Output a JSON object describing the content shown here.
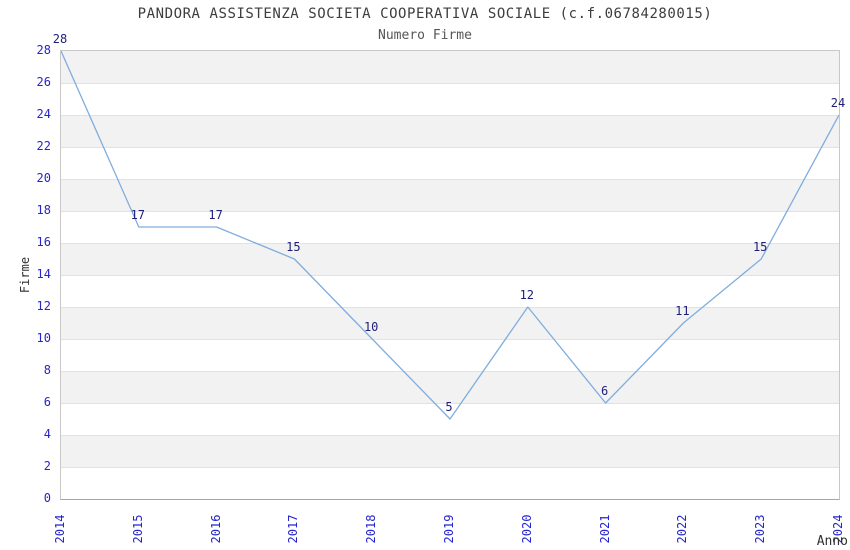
{
  "chart_data": {
    "type": "line",
    "title": "PANDORA ASSISTENZA SOCIETA COOPERATIVA SOCIALE (c.f.06784280015)",
    "subtitle": "Numero Firme",
    "xlabel": "Anno",
    "ylabel": "Firme",
    "categories": [
      "2014",
      "2015",
      "2016",
      "2017",
      "2018",
      "2019",
      "2020",
      "2021",
      "2022",
      "2023",
      "2024"
    ],
    "values": [
      28,
      17,
      17,
      15,
      10,
      5,
      12,
      6,
      11,
      15,
      24
    ],
    "ylim": [
      0,
      28
    ],
    "ytick_step": 2,
    "grid": "horizontal",
    "banding": "alternating-2-unit-rows",
    "legend_position": "none",
    "colors": {
      "line": "#7fadde",
      "axis_tick_labels": "#2525cd",
      "point_labels": "#1e1e78",
      "band_gray": "#f2f2f2",
      "gridline": "#e2e2e2",
      "plot_border": "#c8c8c8",
      "axis_line": "#a6a6a6",
      "title_text": "#3d3d3d",
      "subtitle_text": "#565656"
    }
  }
}
